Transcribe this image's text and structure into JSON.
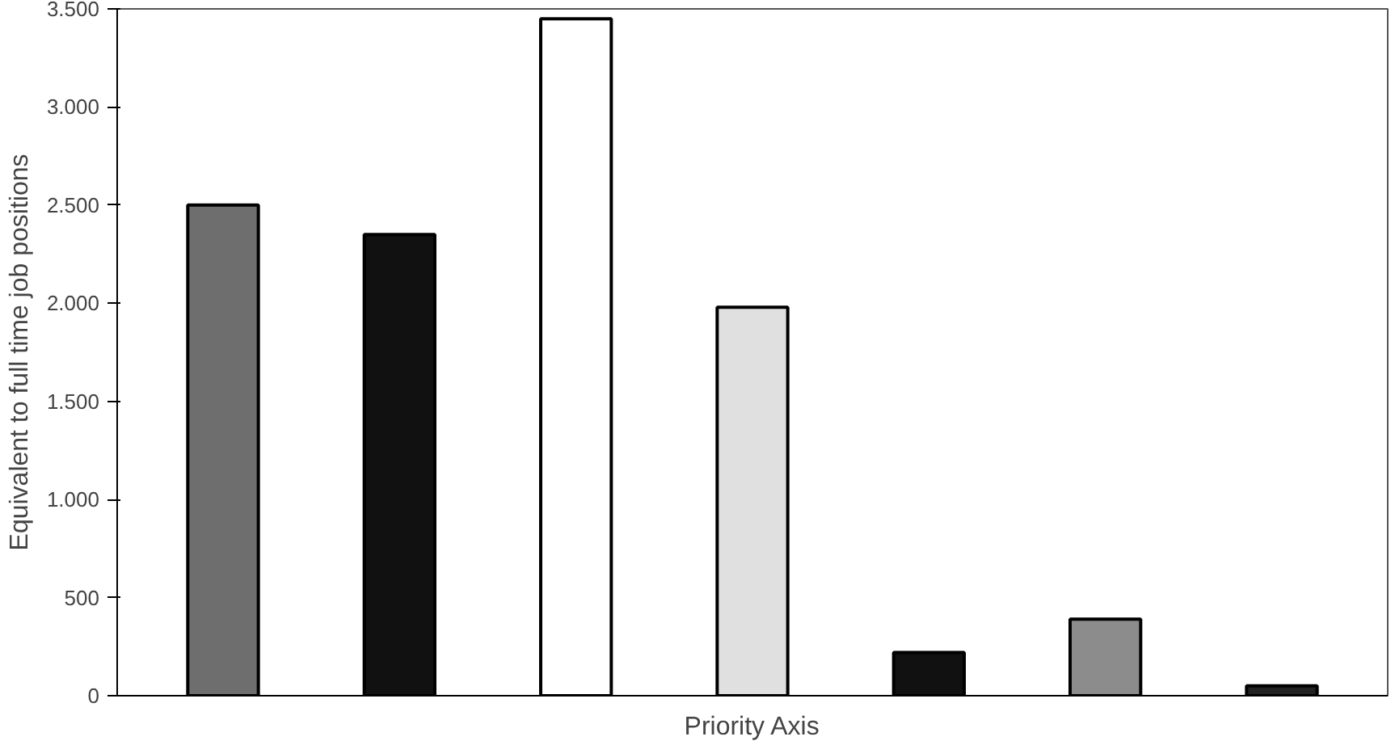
{
  "chart_data": {
    "type": "bar",
    "xlabel": "Priority Axis",
    "ylabel": "Equivalent to full time job positions",
    "categories": [
      null,
      null,
      null,
      null,
      null,
      null,
      null
    ],
    "values": [
      2500,
      2350,
      3450,
      1980,
      220,
      390,
      50
    ],
    "colors": [
      "#6e6e6e",
      "#111111",
      "#ffffff",
      "#e0e0e0",
      "#111111",
      "#8c8c8c",
      "#222222"
    ],
    "ylim": [
      0,
      3500
    ],
    "yticks": [
      {
        "value": 0,
        "label": "0"
      },
      {
        "value": 500,
        "label": "500"
      },
      {
        "value": 1000,
        "label": "1.000"
      },
      {
        "value": 1500,
        "label": "1.500"
      },
      {
        "value": 2000,
        "label": "2.000"
      },
      {
        "value": 2500,
        "label": "2.500"
      },
      {
        "value": 3000,
        "label": "3.000"
      },
      {
        "value": 3500,
        "label": "3.500"
      }
    ],
    "grid": false
  }
}
